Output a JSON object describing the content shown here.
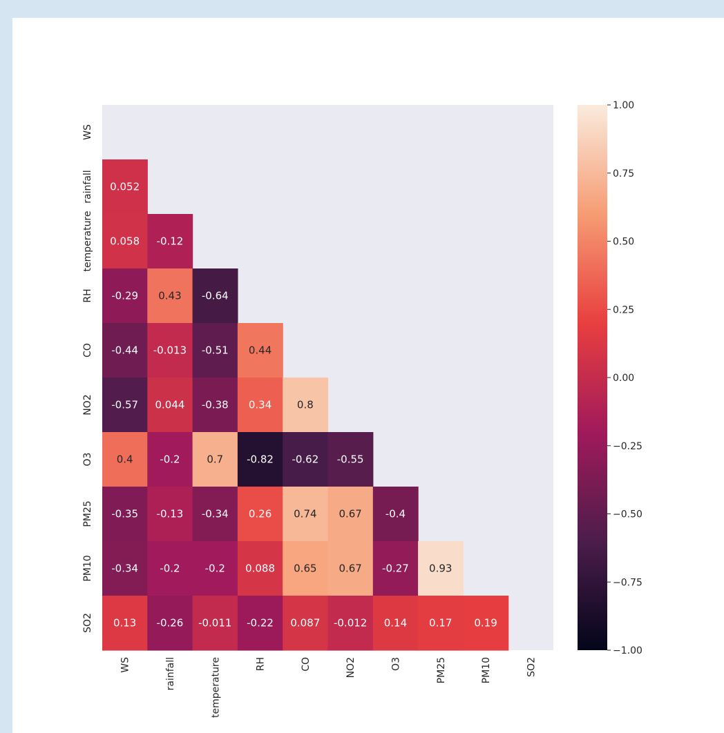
{
  "chart_data": {
    "type": "heatmap",
    "title": "",
    "xlabel": "",
    "ylabel": "",
    "variables": [
      "WS",
      "rainfall",
      "temperature",
      "RH",
      "CO",
      "NO2",
      "O3",
      "PM25",
      "PM10",
      "SO2"
    ],
    "x_labels": [
      "WS",
      "rainfall",
      "temperature",
      "RH",
      "CO",
      "NO2",
      "O3",
      "PM25",
      "PM10",
      "SO2"
    ],
    "y_labels": [
      "WS",
      "rainfall",
      "temperature",
      "RH",
      "CO",
      "NO2",
      "O3",
      "PM25",
      "PM10",
      "SO2"
    ],
    "mask": "upper-triangle-including-diagonal",
    "value_labels": [
      [],
      [
        "0.052"
      ],
      [
        "0.058",
        "-0.12"
      ],
      [
        "-0.29",
        "0.43",
        "-0.64"
      ],
      [
        "-0.44",
        "-0.013",
        "-0.51",
        "0.44"
      ],
      [
        "-0.57",
        "0.044",
        "-0.38",
        "0.34",
        "0.8"
      ],
      [
        "0.4",
        "-0.2",
        "0.7",
        "-0.82",
        "-0.62",
        "-0.55"
      ],
      [
        "-0.35",
        "-0.13",
        "-0.34",
        "0.26",
        "0.74",
        "0.67",
        "-0.4"
      ],
      [
        "-0.34",
        "-0.2",
        "-0.2",
        "0.088",
        "0.65",
        "0.67",
        "-0.27",
        "0.93"
      ],
      [
        "0.13",
        "-0.26",
        "-0.011",
        "-0.22",
        "0.087",
        "-0.012",
        "0.14",
        "0.17",
        "0.19"
      ]
    ],
    "values": [
      [],
      [
        0.052
      ],
      [
        0.058,
        -0.12
      ],
      [
        -0.29,
        0.43,
        -0.64
      ],
      [
        -0.44,
        -0.013,
        -0.51,
        0.44
      ],
      [
        -0.57,
        0.044,
        -0.38,
        0.34,
        0.8
      ],
      [
        0.4,
        -0.2,
        0.7,
        -0.82,
        -0.62,
        -0.55
      ],
      [
        -0.35,
        -0.13,
        -0.34,
        0.26,
        0.74,
        0.67,
        -0.4
      ],
      [
        -0.34,
        -0.2,
        -0.2,
        0.088,
        0.65,
        0.67,
        -0.27,
        0.93
      ],
      [
        0.13,
        -0.26,
        -0.011,
        -0.22,
        0.087,
        -0.012,
        0.14,
        0.17,
        0.19
      ]
    ],
    "colorbar": {
      "vmin": -1.0,
      "vmax": 1.0,
      "ticks": [
        1.0,
        0.75,
        0.5,
        0.25,
        0.0,
        -0.25,
        -0.5,
        -0.75,
        -1.0
      ],
      "tick_labels": [
        "1.00",
        "0.75",
        "0.50",
        "0.25",
        "0.00",
        "−0.25",
        "−0.50",
        "−0.75",
        "−1.00"
      ],
      "colormap": "rocket",
      "colormap_stops": [
        "#03051a",
        "#4c1d4b",
        "#a11a5b",
        "#e83f3f",
        "#f69c73",
        "#faebdd"
      ]
    },
    "grid": false,
    "legend": "right",
    "colors": {
      "background": "#d5e5f2",
      "panel": "#ffffff",
      "masked_area": "#eaeaf2"
    }
  }
}
